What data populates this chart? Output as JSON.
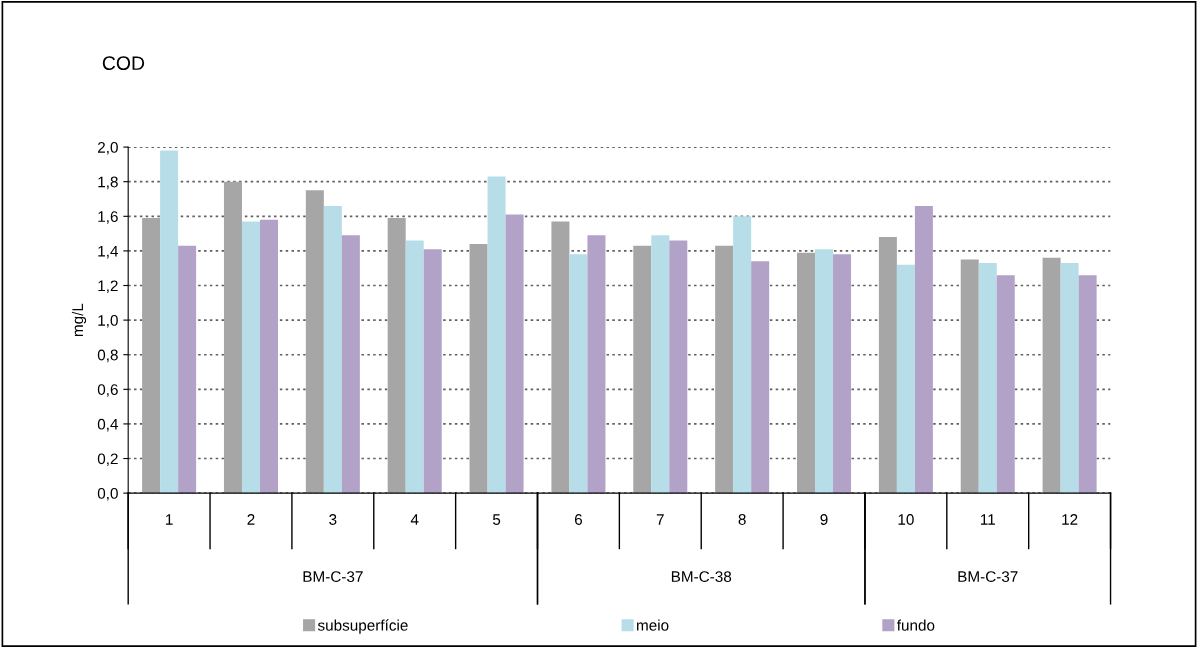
{
  "chart_data": {
    "type": "bar",
    "title": "COD",
    "ylabel": "mg/L",
    "categories": [
      "1",
      "2",
      "3",
      "4",
      "5",
      "6",
      "7",
      "8",
      "9",
      "10",
      "11",
      "12"
    ],
    "series": [
      {
        "name": "subsuperfície",
        "color": "#a6a6a6",
        "values": [
          1.59,
          1.8,
          1.75,
          1.59,
          1.44,
          1.57,
          1.43,
          1.43,
          1.39,
          1.48,
          1.35,
          1.36
        ]
      },
      {
        "name": "meio",
        "color": "#b7dde8",
        "values": [
          1.98,
          1.57,
          1.66,
          1.46,
          1.83,
          1.38,
          1.49,
          1.6,
          1.41,
          1.32,
          1.33,
          1.33
        ]
      },
      {
        "name": "fundo",
        "color": "#b3a2c7",
        "values": [
          1.43,
          1.58,
          1.49,
          1.41,
          1.61,
          1.49,
          1.46,
          1.34,
          1.38,
          1.66,
          1.26,
          1.26
        ]
      }
    ],
    "annotations": [
      "BM-C-37",
      "BM-C-38",
      "BM-C-37"
    ],
    "ylim": [
      0,
      2.0
    ],
    "yticks": [
      {
        "value": 0,
        "label": "0,0"
      },
      {
        "value": 0.2,
        "label": "0,2"
      },
      {
        "value": 0.4,
        "label": "0,4"
      },
      {
        "value": 0.6,
        "label": "0,6"
      },
      {
        "value": 0.8,
        "label": "0,8"
      },
      {
        "value": 1.0,
        "label": "1,0"
      },
      {
        "value": 1.2,
        "label": "1,2"
      },
      {
        "value": 1.4,
        "label": "1,4"
      },
      {
        "value": 1.6,
        "label": "1,6"
      },
      {
        "value": 1.8,
        "label": "1,8"
      },
      {
        "value": 2.0,
        "label": "2,0"
      }
    ],
    "grid": "y",
    "legend": "bottom"
  }
}
